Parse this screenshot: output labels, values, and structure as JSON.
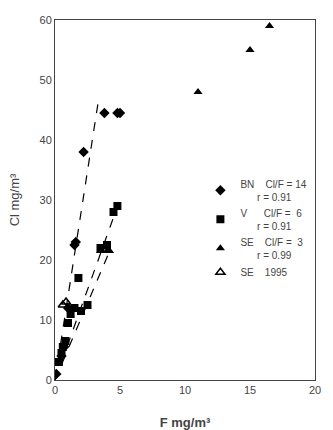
{
  "chart_data": {
    "type": "scatter",
    "xlabel": "F mg/m³",
    "ylabel": "Cl mg/m³",
    "xlim": [
      0,
      20
    ],
    "ylim": [
      0,
      60
    ],
    "xticks": [
      0,
      5,
      10,
      15,
      20
    ],
    "yticks": [
      0,
      10,
      20,
      30,
      40,
      50,
      60
    ],
    "grid": false,
    "legend": "right",
    "series": [
      {
        "type": "line",
        "x": [
          0.0,
          3.3
        ],
        "values": [
          0.0,
          46.0
        ],
        "color": "black",
        "line_style": "dashed"
      },
      {
        "type": "line",
        "x": [
          0.0,
          4.9
        ],
        "values": [
          0.0,
          29.5
        ],
        "color": "black",
        "line_style": "dashed"
      },
      {
        "type": "line",
        "x": [
          0.0,
          4.3
        ],
        "values": [
          0.0,
          22.0
        ],
        "color": "black",
        "line_style": "dashed"
      },
      {
        "type": "scatter",
        "name": "BN    Cl/F = 14\n      r = 0.91",
        "color": "black",
        "marker": "diamond",
        "x": [
          0.1,
          0.5,
          0.7,
          1.0,
          1.5,
          1.6,
          2.2,
          3.8,
          4.8,
          5.0
        ],
        "values": [
          1.0,
          4.0,
          5.5,
          12.0,
          22.5,
          23.0,
          38.0,
          44.5,
          44.5,
          44.5
        ]
      },
      {
        "type": "scatter",
        "name": "V      Cl/F =  6\n      r = 0.91",
        "color": "black",
        "marker": "square",
        "x": [
          0.3,
          0.5,
          0.6,
          0.8,
          1.0,
          1.2,
          1.5,
          1.8,
          2.0,
          2.5,
          3.5,
          4.0,
          4.5,
          4.8
        ],
        "values": [
          3.0,
          4.5,
          5.5,
          6.5,
          9.5,
          11.0,
          12.0,
          17.0,
          11.5,
          12.5,
          22.0,
          22.5,
          28.0,
          29.0
        ]
      },
      {
        "type": "scatter",
        "name": "SE    Cl/F =  3\n      r = 0.99",
        "color": "black",
        "marker": "triangle-up",
        "x": [
          3.5,
          4.0,
          4.2,
          11.0,
          15.0,
          16.5
        ],
        "values": [
          21.5,
          21.5,
          21.5,
          48.0,
          55.0,
          59.0
        ]
      },
      {
        "type": "scatter",
        "name": "SE    1995",
        "color": "black",
        "marker": "triangle-up-open",
        "x": [
          0.6,
          0.85
        ],
        "values": [
          12.5,
          13.0
        ]
      }
    ]
  }
}
